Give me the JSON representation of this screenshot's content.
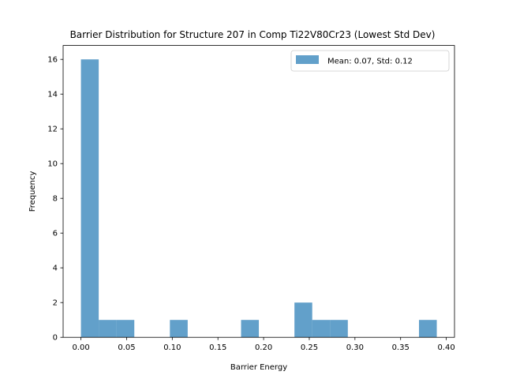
{
  "chart_data": {
    "type": "bar",
    "title": "Barrier Distribution for Structure 207 in Comp Ti22V80Cr23 (Lowest Std Dev)",
    "xlabel": "Barrier Energy",
    "ylabel": "Frequency",
    "xlim": [
      -0.0195,
      0.409
    ],
    "ylim": [
      0,
      16.8
    ],
    "x_ticks": [
      "0.00",
      "0.05",
      "0.10",
      "0.15",
      "0.20",
      "0.25",
      "0.30",
      "0.35",
      "0.40"
    ],
    "y_ticks": [
      "0",
      "2",
      "4",
      "6",
      "8",
      "10",
      "12",
      "14",
      "16"
    ],
    "bin_edges": [
      0.0,
      0.01948,
      0.03896,
      0.05844,
      0.07792,
      0.0974,
      0.11688,
      0.13636,
      0.15584,
      0.17532,
      0.1948,
      0.21428,
      0.23376,
      0.25324,
      0.27272,
      0.2922,
      0.31168,
      0.33116,
      0.35064,
      0.37012,
      0.3896
    ],
    "counts": [
      16,
      1,
      1,
      0,
      0,
      1,
      0,
      0,
      0,
      1,
      0,
      0,
      2,
      1,
      1,
      0,
      0,
      0,
      0,
      1
    ],
    "series": [
      {
        "name": "Mean: 0.07, Std: 0.12",
        "color": "#1f77b4",
        "alpha": 0.7
      }
    ],
    "legend": {
      "position": "top-right"
    },
    "grid": false
  }
}
